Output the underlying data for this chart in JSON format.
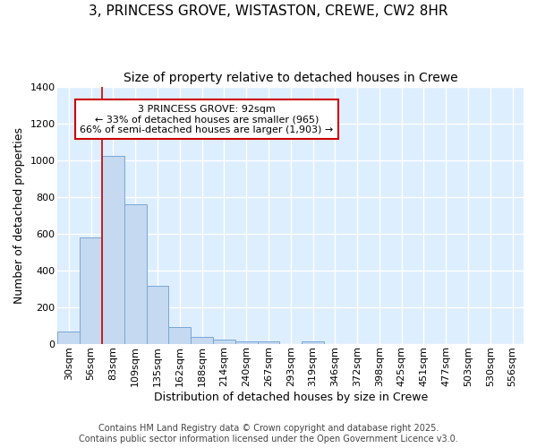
{
  "title_line1": "3, PRINCESS GROVE, WISTASTON, CREWE, CW2 8HR",
  "title_line2": "Size of property relative to detached houses in Crewe",
  "xlabel": "Distribution of detached houses by size in Crewe",
  "ylabel": "Number of detached properties",
  "categories": [
    "30sqm",
    "56sqm",
    "83sqm",
    "109sqm",
    "135sqm",
    "162sqm",
    "188sqm",
    "214sqm",
    "240sqm",
    "267sqm",
    "293sqm",
    "319sqm",
    "346sqm",
    "372sqm",
    "398sqm",
    "425sqm",
    "451sqm",
    "477sqm",
    "503sqm",
    "530sqm",
    "556sqm"
  ],
  "values": [
    65,
    580,
    1020,
    760,
    315,
    90,
    38,
    22,
    12,
    12,
    0,
    12,
    0,
    0,
    0,
    0,
    0,
    0,
    0,
    0,
    0
  ],
  "bar_color": "#c5d9f0",
  "bar_edge_color": "#7aa7d4",
  "background_color": "#ddeeff",
  "grid_color": "#ffffff",
  "red_line_x": 2.0,
  "annotation_line1": "3 PRINCESS GROVE: 92sqm",
  "annotation_line2": "← 33% of detached houses are smaller (965)",
  "annotation_line3": "66% of semi-detached houses are larger (1,903) →",
  "annotation_box_color": "#ffffff",
  "annotation_edge_color": "#cc0000",
  "ylim": [
    0,
    1400
  ],
  "yticks": [
    0,
    200,
    400,
    600,
    800,
    1000,
    1200,
    1400
  ],
  "footer_text": "Contains HM Land Registry data © Crown copyright and database right 2025.\nContains public sector information licensed under the Open Government Licence v3.0.",
  "title_fontsize": 11,
  "subtitle_fontsize": 10,
  "axis_label_fontsize": 9,
  "tick_fontsize": 8,
  "annotation_fontsize": 8,
  "footer_fontsize": 7
}
